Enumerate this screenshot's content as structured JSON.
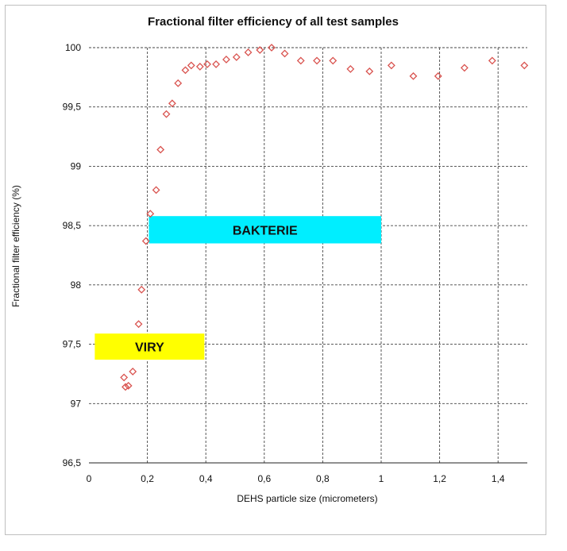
{
  "chart_data": {
    "type": "scatter",
    "title": "Fractional filter efficiency of all test samples",
    "xlabel": "DEHS particle size (micrometers)",
    "ylabel": "Fractional filter efficiency (%)",
    "xlim": [
      0,
      1.5
    ],
    "ylim": [
      96.5,
      100
    ],
    "x_ticks": [
      0,
      0.2,
      0.4,
      0.6,
      0.8,
      1,
      1.2,
      1.4
    ],
    "x_tick_labels": [
      "0",
      "0,2",
      "0,4",
      "0,6",
      "0,8",
      "1",
      "1,2",
      "1,4"
    ],
    "y_ticks": [
      96.5,
      97,
      97.5,
      98,
      98.5,
      99,
      99.5,
      100
    ],
    "y_tick_labels": [
      "96,5",
      "97",
      "97,5",
      "98",
      "98,5",
      "99",
      "99,5",
      "100"
    ],
    "grid": true,
    "marker": "diamond",
    "marker_color": "#d9534f",
    "points": [
      {
        "x": 0.12,
        "y": 97.22
      },
      {
        "x": 0.125,
        "y": 97.14
      },
      {
        "x": 0.135,
        "y": 97.15
      },
      {
        "x": 0.15,
        "y": 97.27
      },
      {
        "x": 0.17,
        "y": 97.67
      },
      {
        "x": 0.18,
        "y": 97.96
      },
      {
        "x": 0.195,
        "y": 98.37
      },
      {
        "x": 0.21,
        "y": 98.6
      },
      {
        "x": 0.23,
        "y": 98.8
      },
      {
        "x": 0.245,
        "y": 99.14
      },
      {
        "x": 0.265,
        "y": 99.44
      },
      {
        "x": 0.285,
        "y": 99.53
      },
      {
        "x": 0.305,
        "y": 99.7
      },
      {
        "x": 0.33,
        "y": 99.81
      },
      {
        "x": 0.35,
        "y": 99.85
      },
      {
        "x": 0.38,
        "y": 99.84
      },
      {
        "x": 0.405,
        "y": 99.86
      },
      {
        "x": 0.435,
        "y": 99.86
      },
      {
        "x": 0.47,
        "y": 99.9
      },
      {
        "x": 0.505,
        "y": 99.92
      },
      {
        "x": 0.545,
        "y": 99.96
      },
      {
        "x": 0.585,
        "y": 99.98
      },
      {
        "x": 0.625,
        "y": 100.0
      },
      {
        "x": 0.67,
        "y": 99.95
      },
      {
        "x": 0.725,
        "y": 99.89
      },
      {
        "x": 0.78,
        "y": 99.89
      },
      {
        "x": 0.835,
        "y": 99.89
      },
      {
        "x": 0.895,
        "y": 99.82
      },
      {
        "x": 0.96,
        "y": 99.8
      },
      {
        "x": 1.035,
        "y": 99.85
      },
      {
        "x": 1.11,
        "y": 99.76
      },
      {
        "x": 1.195,
        "y": 99.76
      },
      {
        "x": 1.285,
        "y": 99.83
      },
      {
        "x": 1.38,
        "y": 99.89
      },
      {
        "x": 1.49,
        "y": 99.85
      }
    ],
    "annotations": [
      {
        "label": "VIRY",
        "color": "#ffff00",
        "x_from": 0.02,
        "x_to": 0.395,
        "y_from": 97.37,
        "y_to": 97.59
      },
      {
        "label": "BAKTERIE",
        "color": "#00eeff",
        "x_from": 0.205,
        "x_to": 1.0,
        "y_from": 98.35,
        "y_to": 98.58
      }
    ]
  }
}
